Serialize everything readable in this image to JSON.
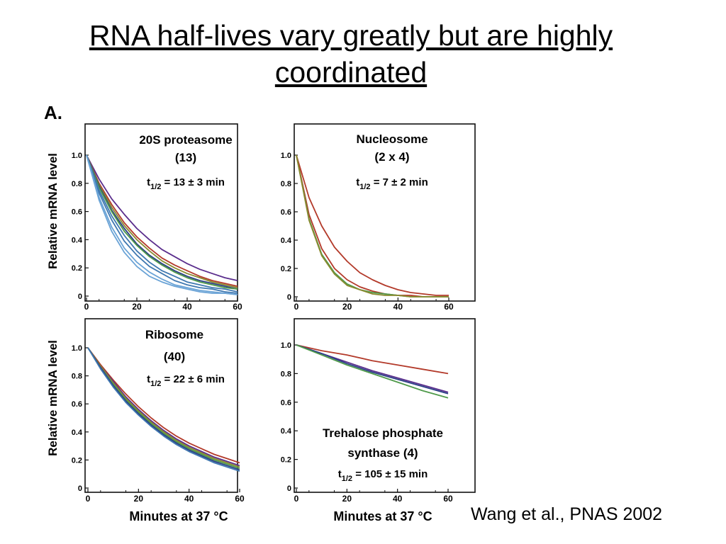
{
  "slide": {
    "title_line1": "RNA half-lives vary greatly but are highly",
    "title_line2": "coordinated",
    "citation": "Wang et al., PNAS 2002"
  },
  "figure": {
    "panel_letter": "A.",
    "ylabel": "Relative mRNA level",
    "xlabel": "Minutes at 37 °C"
  },
  "colors": {
    "purple": "#5a2d8c",
    "red": "#b33a2a",
    "navy": "#2b3f86",
    "green": "#4f9a4a",
    "olive": "#8a8a30",
    "blue": "#3f78b0",
    "lightblue": "#6aa3d6"
  },
  "chart_data": [
    {
      "type": "line",
      "panel": "top-left",
      "title": "20S proteasome",
      "subtitle": "(13)",
      "halflife_label": "t1/2 = 13 ± 3 min",
      "hl_pre": "t",
      "hl_sub": "1/2",
      "hl_post": " = 13 ± 3 min",
      "xlim": [
        0,
        60
      ],
      "ylim": [
        0,
        1
      ],
      "xticks": [
        "0",
        "20",
        "40",
        "60"
      ],
      "yticks": [
        "0",
        "0.2",
        "0.4",
        "0.6",
        "0.8",
        "1.0"
      ],
      "x": [
        0,
        5,
        10,
        15,
        20,
        25,
        30,
        35,
        40,
        45,
        50,
        55,
        60
      ],
      "series": [
        {
          "color": "purple",
          "values": [
            1.0,
            0.83,
            0.69,
            0.58,
            0.48,
            0.4,
            0.33,
            0.28,
            0.23,
            0.19,
            0.16,
            0.13,
            0.11
          ]
        },
        {
          "color": "red",
          "values": [
            1.0,
            0.8,
            0.65,
            0.52,
            0.42,
            0.34,
            0.27,
            0.22,
            0.18,
            0.14,
            0.11,
            0.09,
            0.07
          ]
        },
        {
          "color": "olive",
          "values": [
            1.0,
            0.79,
            0.63,
            0.5,
            0.4,
            0.32,
            0.25,
            0.2,
            0.16,
            0.13,
            0.1,
            0.08,
            0.06
          ]
        },
        {
          "color": "navy",
          "values": [
            1.0,
            0.78,
            0.61,
            0.48,
            0.37,
            0.29,
            0.23,
            0.18,
            0.14,
            0.11,
            0.09,
            0.07,
            0.05
          ]
        },
        {
          "color": "green",
          "values": [
            1.0,
            0.77,
            0.6,
            0.46,
            0.36,
            0.28,
            0.22,
            0.17,
            0.13,
            0.1,
            0.08,
            0.06,
            0.05
          ]
        },
        {
          "color": "blue",
          "values": [
            1.0,
            0.75,
            0.57,
            0.43,
            0.32,
            0.24,
            0.18,
            0.14,
            0.1,
            0.08,
            0.06,
            0.05,
            0.03
          ]
        },
        {
          "color": "blue",
          "values": [
            1.0,
            0.73,
            0.54,
            0.39,
            0.29,
            0.21,
            0.16,
            0.11,
            0.08,
            0.06,
            0.05,
            0.03,
            0.02
          ]
        },
        {
          "color": "lightblue",
          "values": [
            1.0,
            0.7,
            0.49,
            0.34,
            0.24,
            0.17,
            0.12,
            0.08,
            0.06,
            0.04,
            0.03,
            0.02,
            0.01
          ]
        },
        {
          "color": "lightblue",
          "values": [
            1.0,
            0.68,
            0.46,
            0.31,
            0.21,
            0.14,
            0.1,
            0.07,
            0.05,
            0.03,
            0.02,
            0.02,
            0.01
          ]
        }
      ]
    },
    {
      "type": "line",
      "panel": "top-right",
      "title": "Nucleosome",
      "subtitle": "(2 x 4)",
      "halflife_label": "t1/2 = 7 ± 2 min",
      "hl_pre": "t",
      "hl_sub": "1/2",
      "hl_post": " = 7 ± 2 min",
      "xlim": [
        0,
        60
      ],
      "ylim": [
        0,
        1
      ],
      "xticks": [
        "0",
        "20",
        "40",
        "60"
      ],
      "yticks": [
        "0",
        "0.2",
        "0.4",
        "0.6",
        "0.8",
        "1.0"
      ],
      "x": [
        0,
        5,
        10,
        15,
        20,
        25,
        30,
        35,
        40,
        45,
        50,
        55,
        60
      ],
      "series": [
        {
          "color": "red",
          "values": [
            1.0,
            0.7,
            0.5,
            0.35,
            0.25,
            0.17,
            0.12,
            0.08,
            0.05,
            0.03,
            0.02,
            0.01,
            0.01
          ]
        },
        {
          "color": "red",
          "values": [
            1.0,
            0.58,
            0.34,
            0.2,
            0.12,
            0.07,
            0.04,
            0.02,
            0.01,
            0.01,
            0.0,
            0.0,
            0.0
          ]
        },
        {
          "color": "green",
          "values": [
            1.0,
            0.55,
            0.3,
            0.17,
            0.09,
            0.05,
            0.03,
            0.02,
            0.01,
            0.0,
            0.0,
            0.0,
            0.0
          ]
        },
        {
          "color": "olive",
          "values": [
            1.0,
            0.54,
            0.29,
            0.16,
            0.08,
            0.05,
            0.02,
            0.01,
            0.01,
            0.0,
            0.0,
            0.0,
            0.0
          ]
        }
      ]
    },
    {
      "type": "line",
      "panel": "bottom-left",
      "title": "Ribosome",
      "subtitle": "(40)",
      "halflife_label": "t1/2 = 22 ± 6 min",
      "hl_pre": "t",
      "hl_sub": "1/2",
      "hl_post": " = 22 ± 6 min",
      "xlim": [
        0,
        60
      ],
      "ylim": [
        0,
        1
      ],
      "xticks": [
        "0",
        "20",
        "40",
        "60"
      ],
      "yticks": [
        "0",
        "0.2",
        "0.4",
        "0.6",
        "0.8",
        "1.0"
      ],
      "x": [
        0,
        5,
        10,
        15,
        20,
        25,
        30,
        35,
        40,
        45,
        50,
        55,
        60
      ],
      "series": [
        {
          "color": "red",
          "values": [
            1.0,
            0.88,
            0.77,
            0.67,
            0.58,
            0.5,
            0.43,
            0.37,
            0.32,
            0.28,
            0.24,
            0.21,
            0.18
          ]
        },
        {
          "color": "purple",
          "values": [
            1.0,
            0.87,
            0.76,
            0.65,
            0.56,
            0.48,
            0.41,
            0.35,
            0.3,
            0.26,
            0.22,
            0.19,
            0.16
          ]
        },
        {
          "color": "olive",
          "values": [
            1.0,
            0.87,
            0.75,
            0.64,
            0.55,
            0.47,
            0.4,
            0.34,
            0.29,
            0.25,
            0.21,
            0.18,
            0.15
          ]
        },
        {
          "color": "green",
          "values": [
            1.0,
            0.86,
            0.74,
            0.63,
            0.54,
            0.46,
            0.39,
            0.33,
            0.28,
            0.24,
            0.2,
            0.17,
            0.14
          ]
        },
        {
          "color": "navy",
          "values": [
            1.0,
            0.86,
            0.73,
            0.62,
            0.53,
            0.45,
            0.38,
            0.32,
            0.27,
            0.23,
            0.19,
            0.16,
            0.13
          ]
        },
        {
          "color": "blue",
          "values": [
            1.0,
            0.85,
            0.72,
            0.61,
            0.52,
            0.44,
            0.37,
            0.31,
            0.26,
            0.22,
            0.18,
            0.15,
            0.12
          ]
        }
      ]
    },
    {
      "type": "line",
      "panel": "bottom-right",
      "title": "Trehalose phosphate",
      "subtitle": "synthase (4)",
      "halflife_label": "t1/2 = 105 ± 15 min",
      "hl_pre": "t",
      "hl_sub": "1/2",
      "hl_post": " = 105 ± 15 min",
      "xlim": [
        0,
        60
      ],
      "ylim": [
        0,
        1
      ],
      "xticks": [
        "0",
        "20",
        "40",
        "60"
      ],
      "yticks": [
        "0",
        "0.2",
        "0.4",
        "0.6",
        "0.8",
        "1.0"
      ],
      "x": [
        0,
        10,
        20,
        30,
        40,
        50,
        60
      ],
      "series": [
        {
          "color": "red",
          "values": [
            1.0,
            0.96,
            0.93,
            0.89,
            0.86,
            0.83,
            0.8
          ]
        },
        {
          "color": "purple",
          "values": [
            1.0,
            0.94,
            0.88,
            0.82,
            0.77,
            0.72,
            0.67
          ]
        },
        {
          "color": "navy",
          "values": [
            1.0,
            0.94,
            0.87,
            0.81,
            0.76,
            0.71,
            0.66
          ]
        },
        {
          "color": "green",
          "values": [
            1.0,
            0.93,
            0.86,
            0.8,
            0.74,
            0.68,
            0.63
          ]
        }
      ]
    }
  ]
}
